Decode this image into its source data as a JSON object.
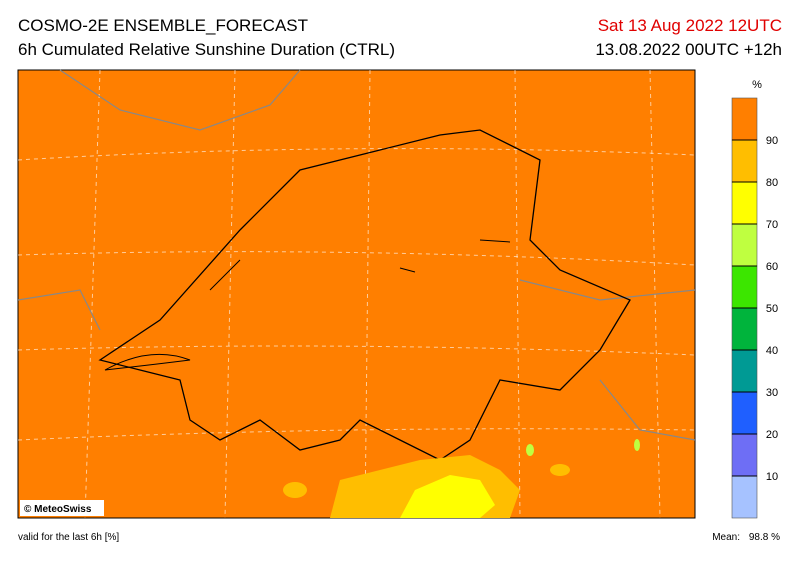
{
  "header": {
    "title": "COSMO-2E ENSEMBLE_FORECAST",
    "subtitle": "6h Cumulated Relative Sunshine Duration (CTRL)",
    "valid_date": "Sat 13 Aug 2022 12UTC",
    "run": "13.08.2022 00UTC +12h"
  },
  "map": {
    "credit": "© MeteoSwiss"
  },
  "legend": {
    "unit": "%",
    "ticks": [
      10,
      20,
      30,
      40,
      50,
      60,
      70,
      80,
      90
    ],
    "colors": [
      "#a6c2ff",
      "#6e6ef5",
      "#1f5fff",
      "#009a94",
      "#00b43c",
      "#3ce600",
      "#bfff40",
      "#ffff00",
      "#ffbe00",
      "#ff7f00"
    ]
  },
  "footer": {
    "note": "valid for the last 6h [%]",
    "mean_label": "Mean:",
    "mean": "98.8 %"
  }
}
